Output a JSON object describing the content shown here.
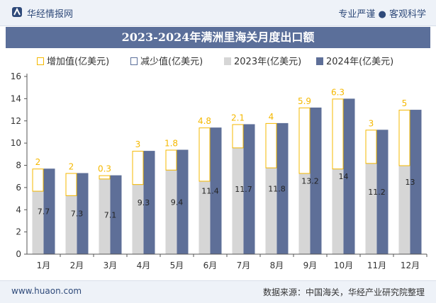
{
  "header": {
    "brand": "华经情报网",
    "slogan": "专业严谨 ● 客观科学",
    "logo_icon": "huajing-logo-icon"
  },
  "title": "2023-2024年满洲里海关月度出口额",
  "colors": {
    "increase": "#f5b800",
    "decrease": "#5b6f9a",
    "y2023": "#d6d6d6",
    "y2024": "#5e6f98",
    "title_bg": "#5b6f9a"
  },
  "chart_data": {
    "type": "bar",
    "title": "2023-2024年满洲里海关月度出口额",
    "categories": [
      "1月",
      "2月",
      "3月",
      "4月",
      "5月",
      "6月",
      "7月",
      "8月",
      "9月",
      "10月",
      "11月",
      "12月"
    ],
    "legend": [
      "增加值(亿美元)",
      "减少值(亿美元)",
      "2023年(亿美元)",
      "2024年(亿美元)"
    ],
    "series": [
      {
        "name": "2023年(亿美元)",
        "values": [
          5.7,
          5.3,
          6.8,
          6.3,
          7.6,
          6.6,
          9.6,
          7.8,
          7.3,
          7.7,
          8.2,
          8.0
        ]
      },
      {
        "name": "2024年(亿美元)",
        "values": [
          7.7,
          7.3,
          7.1,
          9.3,
          9.4,
          11.4,
          11.7,
          11.8,
          13.2,
          14,
          11.2,
          13
        ]
      },
      {
        "name": "增加值(亿美元)",
        "values": [
          2,
          2,
          0.3,
          3,
          1.8,
          4.8,
          2.1,
          4,
          5.9,
          6.3,
          3,
          5
        ]
      },
      {
        "name": "减少值(亿美元)",
        "values": [
          0,
          0,
          0,
          0,
          0,
          0,
          0,
          0,
          0,
          0,
          0,
          0
        ]
      }
    ],
    "increase_labels": [
      "2",
      "2",
      "0.3",
      "3",
      "1.8",
      "4.8",
      "2.1",
      "4",
      "5.9",
      "6.3",
      "3",
      "5"
    ],
    "value_labels_2024": [
      "7.7",
      "7.3",
      "7.1",
      "9.3",
      "9.4",
      "11.4",
      "11.7",
      "11.8",
      "13.2",
      "14",
      "11.2",
      "13"
    ],
    "y_ticks": [
      "0",
      "2",
      "4",
      "6",
      "8",
      "10",
      "12",
      "14",
      "16"
    ],
    "ylim": [
      0,
      16
    ],
    "xlabel": "",
    "ylabel": ""
  },
  "footer": {
    "website": "www.huaon.com",
    "source": "数据来源：中国海关，华经产业研究院整理"
  }
}
